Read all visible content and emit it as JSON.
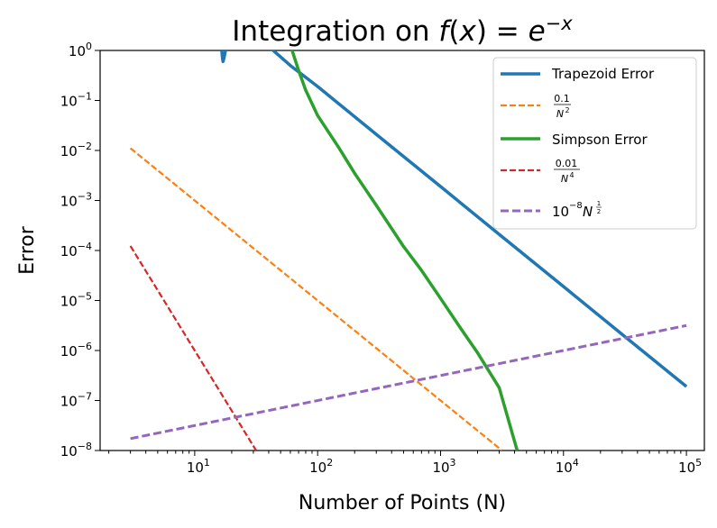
{
  "chart_data": {
    "type": "line",
    "title": {
      "prefix": "Integration on ",
      "math": "f(x) = e^{-x}"
    },
    "xlabel": "Number of Points (N)",
    "ylabel": "Error",
    "xscale": "log",
    "yscale": "log",
    "xlim": [
      1.7,
      140000
    ],
    "ylim": [
      1e-08,
      1
    ],
    "x_ticks": [
      {
        "base": "10",
        "exp": "1",
        "value": 10
      },
      {
        "base": "10",
        "exp": "2",
        "value": 100
      },
      {
        "base": "10",
        "exp": "3",
        "value": 1000
      },
      {
        "base": "10",
        "exp": "4",
        "value": 10000
      },
      {
        "base": "10",
        "exp": "5",
        "value": 100000
      }
    ],
    "y_ticks": [
      {
        "base": "10",
        "exp": "0",
        "value": 1
      },
      {
        "base": "10",
        "exp": "−1",
        "value": 0.1
      },
      {
        "base": "10",
        "exp": "−2",
        "value": 0.01
      },
      {
        "base": "10",
        "exp": "−3",
        "value": 0.001
      },
      {
        "base": "10",
        "exp": "−4",
        "value": 0.0001
      },
      {
        "base": "10",
        "exp": "−5",
        "value": 1e-05
      },
      {
        "base": "10",
        "exp": "−6",
        "value": 1e-06
      },
      {
        "base": "10",
        "exp": "−7",
        "value": 1e-07
      },
      {
        "base": "10",
        "exp": "−8",
        "value": 1e-08
      }
    ],
    "grid": false,
    "legend_position": "top-right",
    "series": [
      {
        "key": "trapezoid",
        "name": "Trapezoid Error",
        "color": "#1f77b4",
        "style": "solid",
        "x": [
          16.6,
          16.8,
          17.0,
          17.3,
          17.8,
          18.5,
          30,
          40,
          60,
          100,
          300,
          1000,
          3000,
          10000,
          30000,
          100000
        ],
        "y": [
          1.0,
          0.72,
          0.6,
          0.7,
          1.0,
          1.4,
          1.4,
          1.2,
          0.5,
          0.19,
          0.021,
          0.0019,
          0.00021,
          1.9e-05,
          2.1e-06,
          1.9e-07
        ]
      },
      {
        "key": "trap_ref",
        "name": "0.1 / N^2",
        "color": "#ff7f0e",
        "style": "dashed",
        "x": [
          3,
          10,
          100,
          1000,
          3162
        ],
        "y": [
          0.0111,
          0.001,
          1e-05,
          1e-07,
          1e-08
        ]
      },
      {
        "key": "simpson",
        "name": "Simpson Error",
        "color": "#2ca02c",
        "style": "solid",
        "x": [
          55,
          62,
          70,
          80,
          100,
          150,
          200,
          300,
          500,
          700,
          1000,
          1500,
          2000,
          3000,
          4200
        ],
        "y": [
          2.0,
          1.0,
          0.4,
          0.16,
          0.05,
          0.011,
          0.0035,
          0.0008,
          0.00012,
          4e-05,
          1.1e-05,
          2.5e-06,
          9e-07,
          1.8e-07,
          1e-08
        ]
      },
      {
        "key": "simp_ref",
        "name": "0.01 / N^4",
        "color": "#d62728",
        "style": "dashed",
        "x": [
          3,
          5,
          10,
          20,
          31.6
        ],
        "y": [
          0.000123,
          1.6e-05,
          1e-06,
          6.25e-08,
          1e-08
        ]
      },
      {
        "key": "sqrt_ref",
        "name": "10^-8 N^(1/2)",
        "color": "#9467bd",
        "style": "dashed",
        "x": [
          3,
          100000
        ],
        "y": [
          1.73e-08,
          3.16e-06
        ]
      }
    ]
  }
}
